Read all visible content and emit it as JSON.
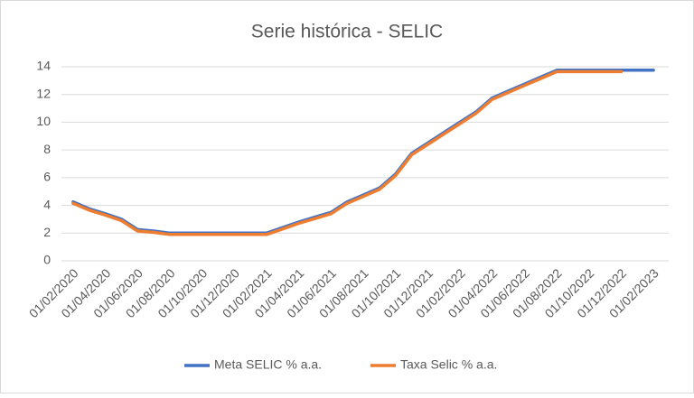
{
  "chart_data": {
    "type": "line",
    "title": "Serie histórica - SELIC",
    "categories": [
      "01/02/2020",
      null,
      "01/04/2020",
      null,
      "01/06/2020",
      null,
      "01/08/2020",
      null,
      "01/10/2020",
      null,
      "01/12/2020",
      null,
      "01/02/2021",
      null,
      "01/04/2021",
      null,
      "01/06/2021",
      null,
      "01/08/2021",
      null,
      "01/10/2021",
      null,
      "01/12/2021",
      null,
      "01/02/2022",
      null,
      "01/04/2022",
      null,
      "01/06/2022",
      null,
      "01/08/2022",
      null,
      "01/10/2022",
      null,
      "01/12/2022",
      null,
      "01/02/2023"
    ],
    "series": [
      {
        "name": "Meta SELIC % a.a.",
        "color": "#4472c4",
        "values": [
          4.25,
          3.75,
          3.4,
          3.0,
          2.25,
          2.15,
          2.0,
          2.0,
          2.0,
          2.0,
          2.0,
          2.0,
          2.0,
          2.4,
          2.8,
          3.15,
          3.5,
          4.25,
          4.75,
          5.25,
          6.25,
          7.75,
          8.5,
          9.25,
          10.0,
          10.75,
          11.75,
          12.25,
          12.75,
          13.25,
          13.75,
          13.75,
          13.75,
          13.75,
          13.75,
          13.75,
          13.75
        ]
      },
      {
        "name": "Taxa Selic % a.a.",
        "color": "#ed7d31",
        "values": [
          4.15,
          3.65,
          3.3,
          2.9,
          2.15,
          2.05,
          1.9,
          1.9,
          1.9,
          1.9,
          1.9,
          1.9,
          1.9,
          2.3,
          2.7,
          3.05,
          3.4,
          4.15,
          4.65,
          5.15,
          6.15,
          7.65,
          8.4,
          9.15,
          9.9,
          10.65,
          11.65,
          12.15,
          12.65,
          13.15,
          13.65,
          13.65,
          13.65,
          13.65,
          13.65,
          null,
          null
        ]
      }
    ],
    "ylim": [
      0,
      14
    ],
    "yticks": [
      0,
      2,
      4,
      6,
      8,
      10,
      12,
      14
    ],
    "grid": true,
    "legend": "bottom"
  }
}
